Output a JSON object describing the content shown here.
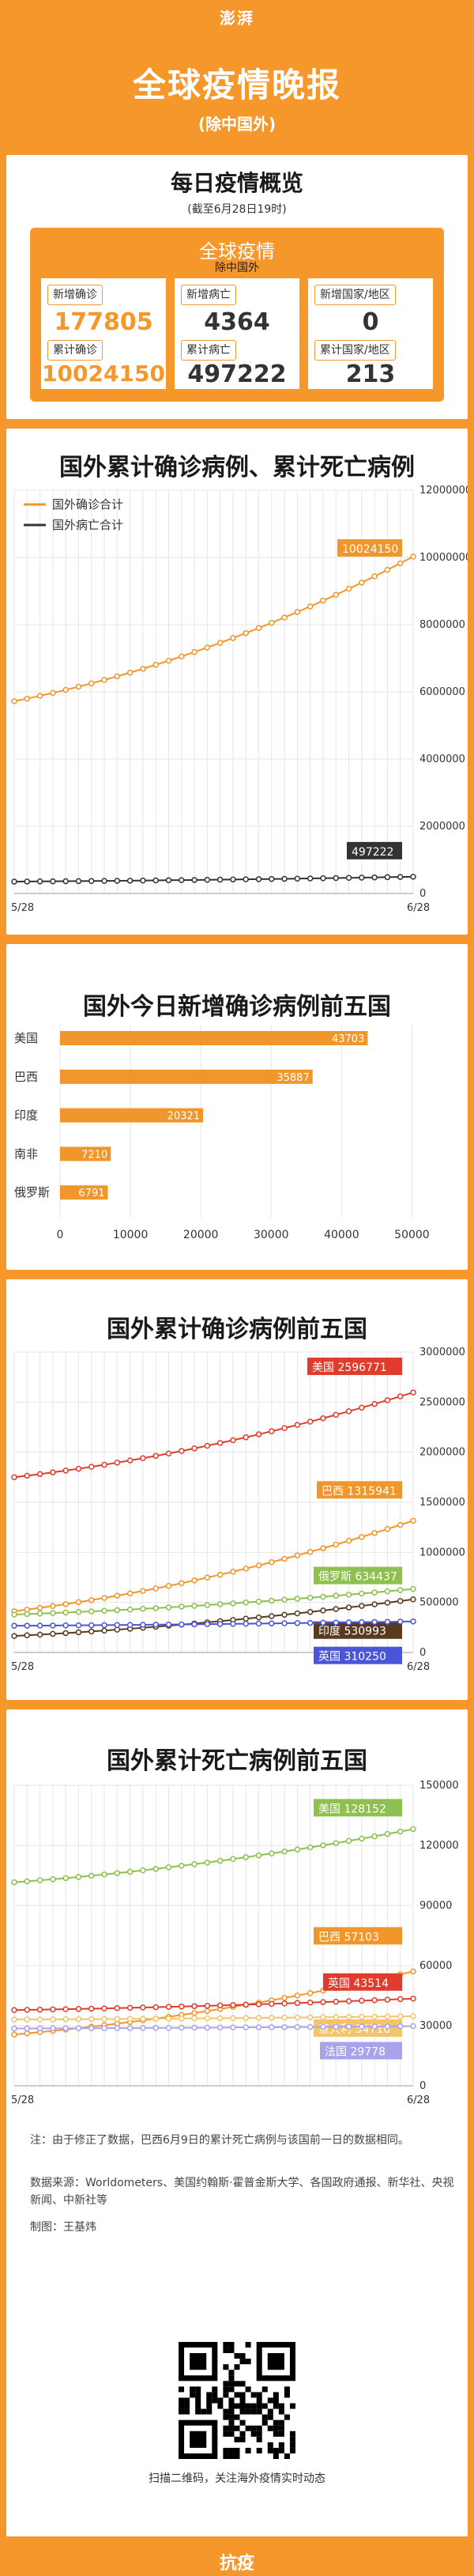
{
  "header": {
    "logo": "澎湃",
    "title": "全球疫情晚报",
    "subtitle": "(除中国外)"
  },
  "summary": {
    "title": "每日疫情概览",
    "as_of": "(截至6月28日19时)",
    "box_title": "全球疫情",
    "box_sub": "除中国外",
    "cards": [
      {
        "label1": "新增确诊",
        "value1": "177805",
        "label2": "累计确诊",
        "value2": "10024150",
        "color": "orange"
      },
      {
        "label1": "新增病亡",
        "value1": "4364",
        "label2": "累计病亡",
        "value2": "497222",
        "color": "dark"
      },
      {
        "label1": "新增国家/地区",
        "value1": "0",
        "label2": "累计国家/地区",
        "value2": "213",
        "color": "dark"
      }
    ]
  },
  "chart_cumulative": {
    "title": "国外累计确诊病例、累计死亡病例"
  },
  "chart_top5_new": {
    "title": "国外今日新增确诊病例前五国"
  },
  "chart_top5_cases": {
    "title": "国外累计确诊病例前五国"
  },
  "chart_top5_deaths": {
    "title": "国外累计死亡病例前五国"
  },
  "chart_data": [
    {
      "type": "line",
      "title": "国外累计确诊病例、累计死亡病例",
      "x_start": "5/28",
      "x_end": "6/28",
      "n_points": 32,
      "ylim": [
        0,
        12000000
      ],
      "yticks": [
        "0",
        "2000000",
        "4000000",
        "6000000",
        "8000000",
        "10000000",
        "12000000"
      ],
      "legend_position": "top-left",
      "series": [
        {
          "name": "国外确诊合计",
          "color": "#f0962a",
          "start": 5720000,
          "end": 10024150,
          "end_label": "10024150"
        },
        {
          "name": "国外病亡合计",
          "color": "#333333",
          "start": 352000,
          "end": 497222,
          "end_label": "497222"
        }
      ]
    },
    {
      "type": "bar",
      "orientation": "horizontal",
      "title": "国外今日新增确诊病例前五国",
      "categories": [
        "美国",
        "巴西",
        "印度",
        "南非",
        "俄罗斯"
      ],
      "values": [
        43703,
        35887,
        20321,
        7210,
        6791
      ],
      "xlim": [
        0,
        55000
      ],
      "xticks": [
        "0",
        "10000",
        "20000",
        "30000",
        "40000",
        "50000"
      ],
      "color": "#f0962a"
    },
    {
      "type": "line",
      "title": "国外累计确诊病例前五国",
      "x_start": "5/28",
      "x_end": "6/28",
      "n_points": 32,
      "ylim": [
        0,
        3000000
      ],
      "yticks": [
        "0",
        "500000",
        "1000000",
        "1500000",
        "2000000",
        "2500000",
        "3000000"
      ],
      "series": [
        {
          "name": "美国",
          "color": "#e03c2e",
          "start": 1750000,
          "end": 2596771,
          "end_label": "2596771"
        },
        {
          "name": "巴西",
          "color": "#f0962a",
          "start": 412000,
          "end": 1315941,
          "end_label": "1315941"
        },
        {
          "name": "俄罗斯",
          "color": "#8dc04e",
          "start": 379000,
          "end": 634437,
          "end_label": "634437"
        },
        {
          "name": "印度",
          "color": "#5a3a1e",
          "start": 165000,
          "end": 530993,
          "end_label": "530993"
        },
        {
          "name": "英国",
          "color": "#4a55d8",
          "start": 267000,
          "end": 310250,
          "end_label": "310250"
        }
      ]
    },
    {
      "type": "line",
      "title": "国外累计死亡病例前五国",
      "x_start": "5/28",
      "x_end": "6/28",
      "n_points": 32,
      "ylim": [
        0,
        150000
      ],
      "yticks": [
        "0",
        "30000",
        "60000",
        "90000",
        "120000",
        "150000"
      ],
      "series": [
        {
          "name": "美国",
          "color": "#8dc04e",
          "start": 101600,
          "end": 128152,
          "end_label": "128152"
        },
        {
          "name": "巴西",
          "color": "#f0962a",
          "start": 25600,
          "end": 57103,
          "end_label": "57103"
        },
        {
          "name": "英国",
          "color": "#e03c2e",
          "start": 37800,
          "end": 43514,
          "end_label": "43514"
        },
        {
          "name": "意大利",
          "color": "#f4c36a",
          "start": 33100,
          "end": 34716,
          "end_label": "34716"
        },
        {
          "name": "法国",
          "color": "#a9a3ea",
          "start": 28600,
          "end": 29778,
          "end_label": "29778"
        }
      ]
    }
  ],
  "notes": {
    "note": "注：由于修正了数据，巴西6月9日的累计死亡病例与该国前一日的数据相同。",
    "sources": "数据来源：Worldometers、美国约翰斯·霍普金斯大学、各国政府通报、新华社、央视新闻、中新社等",
    "author": "制图：王基炜",
    "qr_caption": "扫描二维码，关注海外疫情实时动态"
  },
  "footer": {
    "label": "抗疫"
  }
}
